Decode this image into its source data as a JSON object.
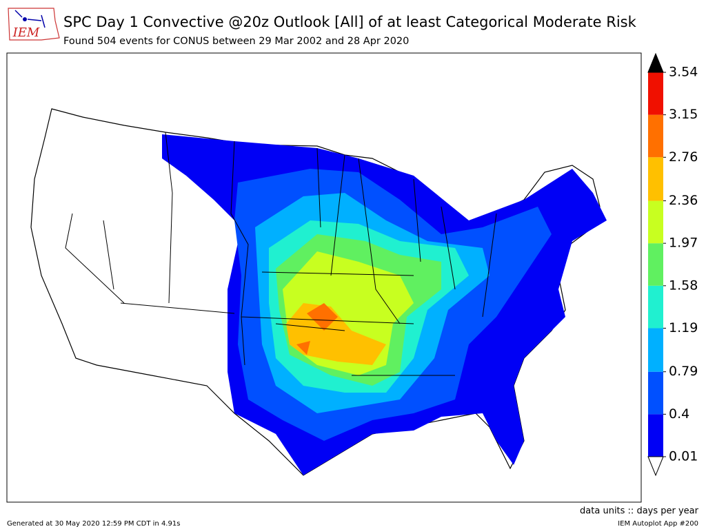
{
  "header": {
    "title": "SPC Day 1 Convective @20z Outlook [All] of at least Categorical Moderate Risk",
    "subtitle": "Found 504 events for CONUS between 29 Mar 2002 and 28 Apr 2020"
  },
  "logo": {
    "text": "IEM"
  },
  "colorbar": {
    "ticks": [
      0.01,
      0.4,
      0.79,
      1.19,
      1.58,
      1.97,
      2.36,
      2.76,
      3.15,
      3.54
    ],
    "colors": [
      "#0000f5",
      "#0050ff",
      "#00b0ff",
      "#20f0d0",
      "#60f060",
      "#c8ff20",
      "#ffc000",
      "#ff7000",
      "#f01000"
    ],
    "over_color": "#000000",
    "under_color": "#ffffff",
    "units_label": "data units :: days per year"
  },
  "footer": {
    "generated": "Generated at 30 May 2020 12:59 PM CDT in 4.91s",
    "app": "IEM Autoplot App #200"
  }
}
